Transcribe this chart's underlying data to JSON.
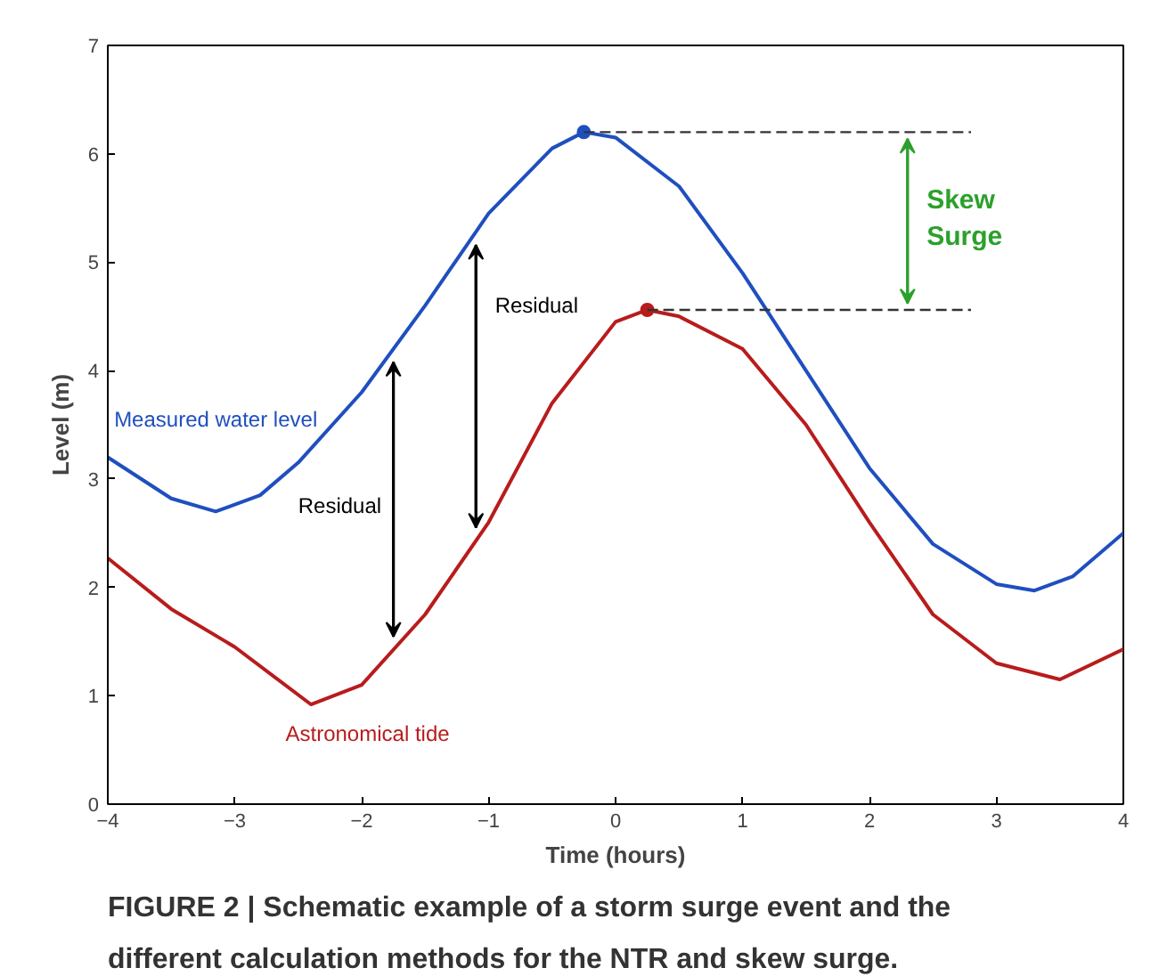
{
  "chart_data": {
    "type": "line",
    "title": "FIGURE 2 | Schematic example of a storm surge event and the different calculation methods for the NTR and skew surge.",
    "xlabel": "Time (hours)",
    "ylabel": "Level (m)",
    "xlim": [
      -4,
      4
    ],
    "ylim": [
      0,
      7
    ],
    "xticks": [
      -4,
      -3,
      -2,
      -1,
      0,
      1,
      2,
      3,
      4
    ],
    "yticks": [
      0,
      1,
      2,
      3,
      4,
      5,
      6,
      7
    ],
    "grid": false,
    "series": [
      {
        "color": "#1f4fbf",
        "x": [
          -4,
          -3.5,
          -3.15,
          -2.8,
          -2.5,
          -2,
          -1.5,
          -1,
          -0.5,
          -0.25,
          0,
          0.5,
          1,
          1.5,
          2,
          2.5,
          3,
          3.3,
          3.6,
          4
        ],
        "values": [
          3.2,
          2.82,
          2.7,
          2.85,
          3.15,
          3.8,
          4.6,
          5.45,
          6.05,
          6.2,
          6.15,
          5.7,
          4.9,
          4.0,
          3.1,
          2.4,
          2.03,
          1.97,
          2.1,
          2.5
        ]
      },
      {
        "color": "#b81c1c",
        "x": [
          -4,
          -3.5,
          -3,
          -2.4,
          -2,
          -1.5,
          -1,
          -0.5,
          0,
          0.25,
          0.5,
          1,
          1.5,
          2,
          2.5,
          3,
          3.5,
          4
        ],
        "values": [
          2.27,
          1.8,
          1.45,
          0.92,
          1.1,
          1.75,
          2.6,
          3.7,
          4.45,
          4.56,
          4.5,
          4.2,
          3.5,
          2.6,
          1.75,
          1.3,
          1.15,
          1.43
        ]
      },
      {
        "type": "scatter",
        "marker": "circle",
        "color": "#1f4fbf",
        "x": [
          -0.25
        ],
        "values": [
          6.2
        ]
      },
      {
        "type": "scatter",
        "marker": "circle",
        "color": "#b81c1c",
        "x": [
          0.25
        ],
        "values": [
          4.56
        ]
      },
      {
        "color": "#333333",
        "line_style": "dashed",
        "x": [
          -0.25,
          2.8
        ],
        "values": [
          6.2,
          6.2
        ]
      },
      {
        "color": "#333333",
        "line_style": "dashed",
        "x": [
          0.25,
          2.8
        ],
        "values": [
          4.56,
          4.56
        ]
      }
    ],
    "annotations": [
      "Measured water level",
      "Astronomical tide",
      "Residual",
      "Residual",
      "Skew Surge"
    ]
  }
}
